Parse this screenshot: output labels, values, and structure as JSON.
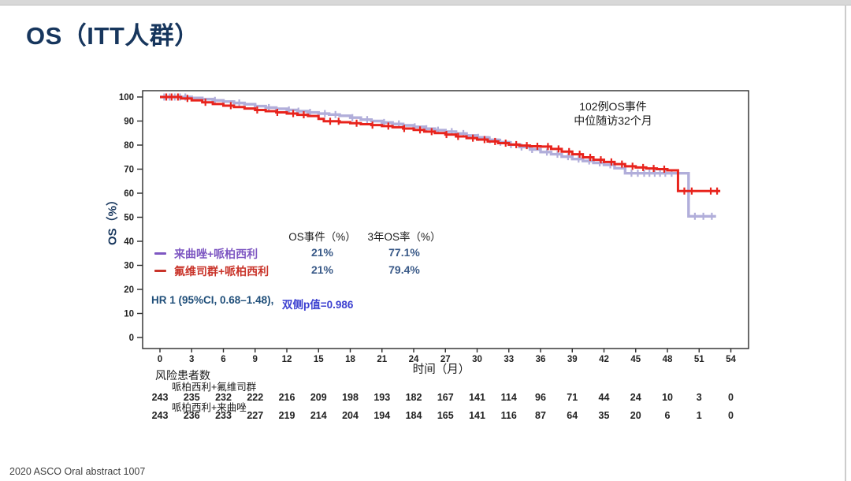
{
  "slide": {
    "title": "OS（ITT人群）",
    "footer": "2020 ASCO Oral abstract 1007"
  },
  "annotation": {
    "line1": "102例OS事件",
    "line2": "中位随访32个月"
  },
  "stats": {
    "events_header": "OS事件（%）",
    "os3_header": "3年OS率（%）",
    "rows": [
      {
        "label": "来曲唑+哌柏西利",
        "events": "21%",
        "os3": "77.1%",
        "color": "#7e57c2"
      },
      {
        "label": "氟维司群+哌柏西利",
        "events": "21%",
        "os3": "79.4%",
        "color": "#c9342a"
      }
    ],
    "hr_text": "HR 1 (95%CI, 0.68–1.48),",
    "p_text": "双侧p值=0.986"
  },
  "chart_data": {
    "type": "line",
    "subtype": "kaplan-meier-step",
    "title": "",
    "xlabel": "时间（月）",
    "ylabel": "OS（%）",
    "xlim": [
      0,
      54
    ],
    "ylim": [
      0,
      100
    ],
    "x_ticks": [
      0,
      3,
      6,
      9,
      12,
      15,
      18,
      21,
      24,
      27,
      30,
      33,
      36,
      39,
      42,
      45,
      48,
      51,
      54
    ],
    "y_ticks": [
      0,
      10,
      20,
      30,
      40,
      50,
      60,
      70,
      80,
      90,
      100
    ],
    "grid": false,
    "legend_position": "inside-lower-left",
    "annotations": [
      "102例OS事件",
      "中位随访32个月"
    ],
    "series": [
      {
        "name": "来曲唑+哌柏西利",
        "color": "#b1aeda",
        "width": 3.4,
        "events_pct": "21%",
        "os_3yr_pct": "77.1%",
        "steps": [
          [
            0,
            100
          ],
          [
            3,
            99.6
          ],
          [
            4,
            99.1
          ],
          [
            5,
            98.6
          ],
          [
            6,
            98.1
          ],
          [
            7,
            97.5
          ],
          [
            8,
            97.0
          ],
          [
            9,
            96.2
          ],
          [
            10,
            95.6
          ],
          [
            11,
            95.1
          ],
          [
            12,
            94.6
          ],
          [
            13,
            94.1
          ],
          [
            14,
            93.6
          ],
          [
            15,
            93.1
          ],
          [
            16,
            92.7
          ],
          [
            17,
            92.2
          ],
          [
            18,
            91.4
          ],
          [
            19,
            90.6
          ],
          [
            20,
            90.0
          ],
          [
            21,
            89.4
          ],
          [
            22,
            88.8
          ],
          [
            23,
            88.2
          ],
          [
            24,
            87.6
          ],
          [
            25,
            86.8
          ],
          [
            26,
            86.2
          ],
          [
            27,
            85.6
          ],
          [
            28,
            84.8
          ],
          [
            29,
            84.0
          ],
          [
            30,
            83.2
          ],
          [
            31,
            82.2
          ],
          [
            32,
            81.2
          ],
          [
            33,
            80.2
          ],
          [
            34,
            79.2
          ],
          [
            35,
            78.2
          ],
          [
            36,
            77.1
          ],
          [
            37,
            76.2
          ],
          [
            38,
            75.2
          ],
          [
            39,
            74.2
          ],
          [
            40,
            73.4
          ],
          [
            41,
            72.6
          ],
          [
            42,
            71.8
          ],
          [
            43,
            70.4
          ],
          [
            44,
            68.3
          ],
          [
            50,
            50.4
          ]
        ],
        "end_time": 52.6,
        "censors": [
          0.4,
          0.9,
          1.4,
          1.9,
          2.4,
          5.2,
          7.5,
          10.3,
          12.2,
          13.1,
          14.2,
          15.6,
          16.6,
          18.2,
          19.6,
          21.2,
          22.6,
          24.1,
          25.2,
          26.3,
          27.6,
          28.7,
          30.1,
          31.2,
          32.2,
          33.2,
          34.2,
          35.2,
          36.6,
          37.6,
          38.6,
          39.6,
          40.6,
          41.6,
          42.6,
          44.6,
          45.2,
          45.8,
          46.3,
          46.8,
          47.3,
          47.8,
          48.4,
          50.6,
          51.4,
          52.2
        ]
      },
      {
        "name": "氟维司群+哌柏西利",
        "color": "#e8231c",
        "width": 3.0,
        "events_pct": "21%",
        "os_3yr_pct": "79.4%",
        "steps": [
          [
            0,
            100
          ],
          [
            2,
            99.4
          ],
          [
            3,
            98.6
          ],
          [
            4,
            97.8
          ],
          [
            5,
            97.1
          ],
          [
            6,
            96.4
          ],
          [
            7,
            95.8
          ],
          [
            8,
            95.2
          ],
          [
            9,
            94.6
          ],
          [
            10,
            94.1
          ],
          [
            11,
            93.6
          ],
          [
            12,
            93.1
          ],
          [
            13,
            92.6
          ],
          [
            14,
            92.1
          ],
          [
            15,
            90.9
          ],
          [
            15.5,
            89.9
          ],
          [
            17,
            89.5
          ],
          [
            18,
            89.1
          ],
          [
            19,
            88.7
          ],
          [
            20,
            88.3
          ],
          [
            21,
            87.9
          ],
          [
            22,
            87.4
          ],
          [
            23,
            86.9
          ],
          [
            24,
            86.3
          ],
          [
            25,
            85.6
          ],
          [
            26,
            85.0
          ],
          [
            27,
            84.4
          ],
          [
            28,
            83.6
          ],
          [
            29,
            82.9
          ],
          [
            30,
            82.3
          ],
          [
            31,
            81.5
          ],
          [
            32,
            80.8
          ],
          [
            33,
            80.2
          ],
          [
            34,
            79.8
          ],
          [
            35,
            79.5
          ],
          [
            36,
            79.4
          ],
          [
            37,
            78.4
          ],
          [
            38,
            77.3
          ],
          [
            39,
            76.2
          ],
          [
            40,
            74.9
          ],
          [
            41,
            73.9
          ],
          [
            42,
            73.0
          ],
          [
            43,
            72.1
          ],
          [
            44,
            71.2
          ],
          [
            45,
            70.7
          ],
          [
            46,
            70.3
          ],
          [
            47,
            70.0
          ],
          [
            48,
            69.5
          ],
          [
            49,
            60.9
          ]
        ],
        "end_time": 53,
        "censors": [
          0.6,
          1.1,
          1.7,
          2.6,
          4.3,
          6.7,
          9.2,
          11.1,
          12.6,
          13.6,
          16.1,
          16.9,
          18.6,
          20.1,
          21.6,
          23.1,
          24.6,
          25.7,
          27.1,
          28.2,
          29.6,
          30.7,
          31.7,
          32.7,
          33.7,
          34.7,
          35.7,
          36.7,
          37.7,
          38.7,
          39.7,
          40.7,
          41.7,
          42.7,
          43.7,
          44.7,
          45.7,
          46.7,
          47.7,
          49.6,
          50.3,
          52.1,
          52.7
        ]
      }
    ]
  },
  "risk_table": {
    "title": "风险患者数",
    "rows": [
      {
        "label": "哌柏西利+氟维司群",
        "counts": [
          243,
          235,
          232,
          222,
          216,
          209,
          198,
          193,
          182,
          167,
          141,
          114,
          96,
          71,
          44,
          24,
          10,
          3,
          0
        ]
      },
      {
        "label": "哌柏西利+来曲唑",
        "counts": [
          243,
          236,
          233,
          227,
          219,
          214,
          204,
          194,
          184,
          165,
          141,
          116,
          87,
          64,
          35,
          20,
          6,
          1,
          0
        ]
      }
    ]
  }
}
